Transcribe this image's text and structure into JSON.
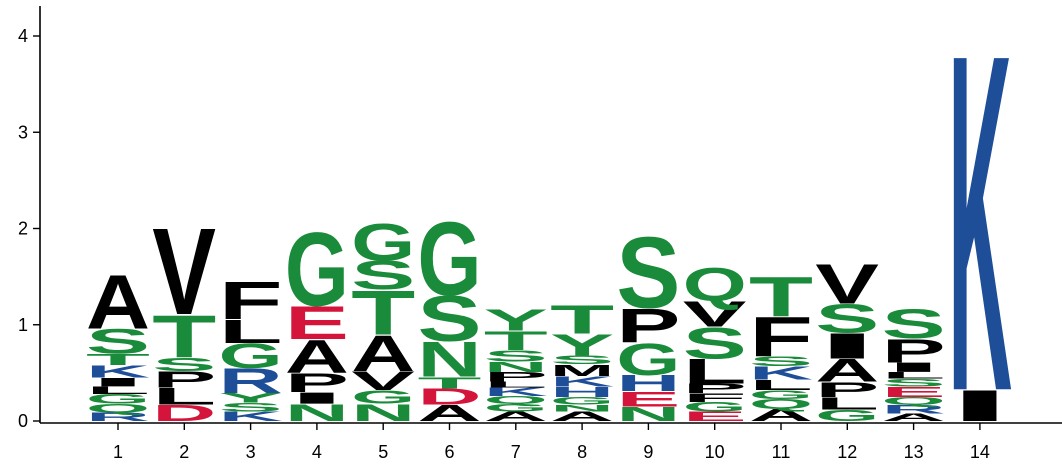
{
  "chart_data": {
    "type": "sequence_logo",
    "title": "",
    "xlabel": "",
    "ylabel": "",
    "ylim": [
      0,
      4.2
    ],
    "yticks": [
      "0",
      "1",
      "2",
      "3",
      "4"
    ],
    "positions": [
      "1",
      "2",
      "3",
      "4",
      "5",
      "6",
      "7",
      "8",
      "9",
      "10",
      "11",
      "12",
      "13",
      "14"
    ],
    "colors": {
      "A": "#000000",
      "C": "#000000",
      "F": "#000000",
      "I": "#000000",
      "L": "#000000",
      "M": "#000000",
      "P": "#000000",
      "V": "#000000",
      "W": "#000000",
      "G": "#1a8b3a",
      "N": "#1a8b3a",
      "Q": "#1a8b3a",
      "S": "#1a8b3a",
      "T": "#1a8b3a",
      "Y": "#1a8b3a",
      "H": "#1f4e99",
      "K": "#1f4e99",
      "R": "#1f4e99",
      "D": "#d4143a",
      "E": "#d4143a"
    },
    "stacks": [
      [
        {
          "letter": "R",
          "height": 0.09
        },
        {
          "letter": "Q",
          "height": 0.09
        },
        {
          "letter": "G",
          "height": 0.1
        },
        {
          "letter": "L",
          "height": 0.08
        },
        {
          "letter": "I",
          "height": 0.09
        },
        {
          "letter": "K",
          "height": 0.13
        },
        {
          "letter": "T",
          "height": 0.12
        },
        {
          "letter": "S",
          "height": 0.26
        },
        {
          "letter": "A",
          "height": 0.57
        }
      ],
      [
        {
          "letter": "D",
          "height": 0.17
        },
        {
          "letter": "L",
          "height": 0.18
        },
        {
          "letter": "P",
          "height": 0.17
        },
        {
          "letter": "S",
          "height": 0.14
        },
        {
          "letter": "T",
          "height": 0.45
        },
        {
          "letter": "V",
          "height": 0.92
        }
      ],
      [
        {
          "letter": "K",
          "height": 0.1
        },
        {
          "letter": "S",
          "height": 0.09
        },
        {
          "letter": "Y",
          "height": 0.1
        },
        {
          "letter": "R",
          "height": 0.26
        },
        {
          "letter": "G",
          "height": 0.26
        },
        {
          "letter": "L",
          "height": 0.25
        },
        {
          "letter": "F",
          "height": 0.4
        }
      ],
      [
        {
          "letter": "N",
          "height": 0.18
        },
        {
          "letter": "I",
          "height": 0.12
        },
        {
          "letter": "P",
          "height": 0.2
        },
        {
          "letter": "A",
          "height": 0.35
        },
        {
          "letter": "E",
          "height": 0.35
        },
        {
          "letter": "G",
          "height": 0.78
        }
      ],
      [
        {
          "letter": "N",
          "height": 0.18
        },
        {
          "letter": "G",
          "height": 0.14
        },
        {
          "letter": "V",
          "height": 0.2
        },
        {
          "letter": "A",
          "height": 0.38
        },
        {
          "letter": "T",
          "height": 0.47
        },
        {
          "letter": "S",
          "height": 0.3
        },
        {
          "letter": "G",
          "height": 0.39
        }
      ],
      [
        {
          "letter": "A",
          "height": 0.17
        },
        {
          "letter": "D",
          "height": 0.17
        },
        {
          "letter": "T",
          "height": 0.12
        },
        {
          "letter": "N",
          "height": 0.37
        },
        {
          "letter": "S",
          "height": 0.48
        },
        {
          "letter": "G",
          "height": 0.78
        }
      ],
      [
        {
          "letter": "A",
          "height": 0.1
        },
        {
          "letter": "G",
          "height": 0.08
        },
        {
          "letter": "Q",
          "height": 0.08
        },
        {
          "letter": "K",
          "height": 0.09
        },
        {
          "letter": "L",
          "height": 0.06
        },
        {
          "letter": "P",
          "height": 0.1
        },
        {
          "letter": "N",
          "height": 0.11
        },
        {
          "letter": "S",
          "height": 0.12
        },
        {
          "letter": "T",
          "height": 0.2
        },
        {
          "letter": "Y",
          "height": 0.23
        }
      ],
      [
        {
          "letter": "A",
          "height": 0.1
        },
        {
          "letter": "N",
          "height": 0.07
        },
        {
          "letter": "G",
          "height": 0.08
        },
        {
          "letter": "H",
          "height": 0.11
        },
        {
          "letter": "K",
          "height": 0.11
        },
        {
          "letter": "M",
          "height": 0.12
        },
        {
          "letter": "S",
          "height": 0.09
        },
        {
          "letter": "Y",
          "height": 0.23
        },
        {
          "letter": "T",
          "height": 0.3
        }
      ],
      [
        {
          "letter": "N",
          "height": 0.15
        },
        {
          "letter": "E",
          "height": 0.16
        },
        {
          "letter": "H",
          "height": 0.17
        },
        {
          "letter": "G",
          "height": 0.34
        },
        {
          "letter": "P",
          "height": 0.36
        },
        {
          "letter": "S",
          "height": 0.75
        }
      ],
      [
        {
          "letter": "E",
          "height": 0.1
        },
        {
          "letter": "G",
          "height": 0.1
        },
        {
          "letter": "F",
          "height": 0.09
        },
        {
          "letter": "P",
          "height": 0.1
        },
        {
          "letter": "L",
          "height": 0.26
        },
        {
          "letter": "S",
          "height": 0.33
        },
        {
          "letter": "V",
          "height": 0.27
        },
        {
          "letter": "Q",
          "height": 0.35
        }
      ],
      [
        {
          "letter": "A",
          "height": 0.13
        },
        {
          "letter": "Q",
          "height": 0.1
        },
        {
          "letter": "G",
          "height": 0.09
        },
        {
          "letter": "L",
          "height": 0.11
        },
        {
          "letter": "K",
          "height": 0.14
        },
        {
          "letter": "S",
          "height": 0.1
        },
        {
          "letter": "F",
          "height": 0.42
        },
        {
          "letter": "T",
          "height": 0.42
        }
      ],
      [
        {
          "letter": "G",
          "height": 0.12
        },
        {
          "letter": "L",
          "height": 0.13
        },
        {
          "letter": "P",
          "height": 0.16
        },
        {
          "letter": "A",
          "height": 0.24
        },
        {
          "letter": "I",
          "height": 0.27
        },
        {
          "letter": "S",
          "height": 0.3
        },
        {
          "letter": "V",
          "height": 0.42
        }
      ],
      [
        {
          "letter": "A",
          "height": 0.08
        },
        {
          "letter": "R",
          "height": 0.09
        },
        {
          "letter": "Q",
          "height": 0.08
        },
        {
          "letter": "E",
          "height": 0.11
        },
        {
          "letter": "S",
          "height": 0.08
        },
        {
          "letter": "L",
          "height": 0.07
        },
        {
          "letter": "I",
          "height": 0.1
        },
        {
          "letter": "P",
          "height": 0.25
        },
        {
          "letter": "S",
          "height": 0.31
        }
      ],
      [
        {
          "letter": "I",
          "height": 0.33
        },
        {
          "letter": "K",
          "height": 3.58
        }
      ]
    ]
  }
}
